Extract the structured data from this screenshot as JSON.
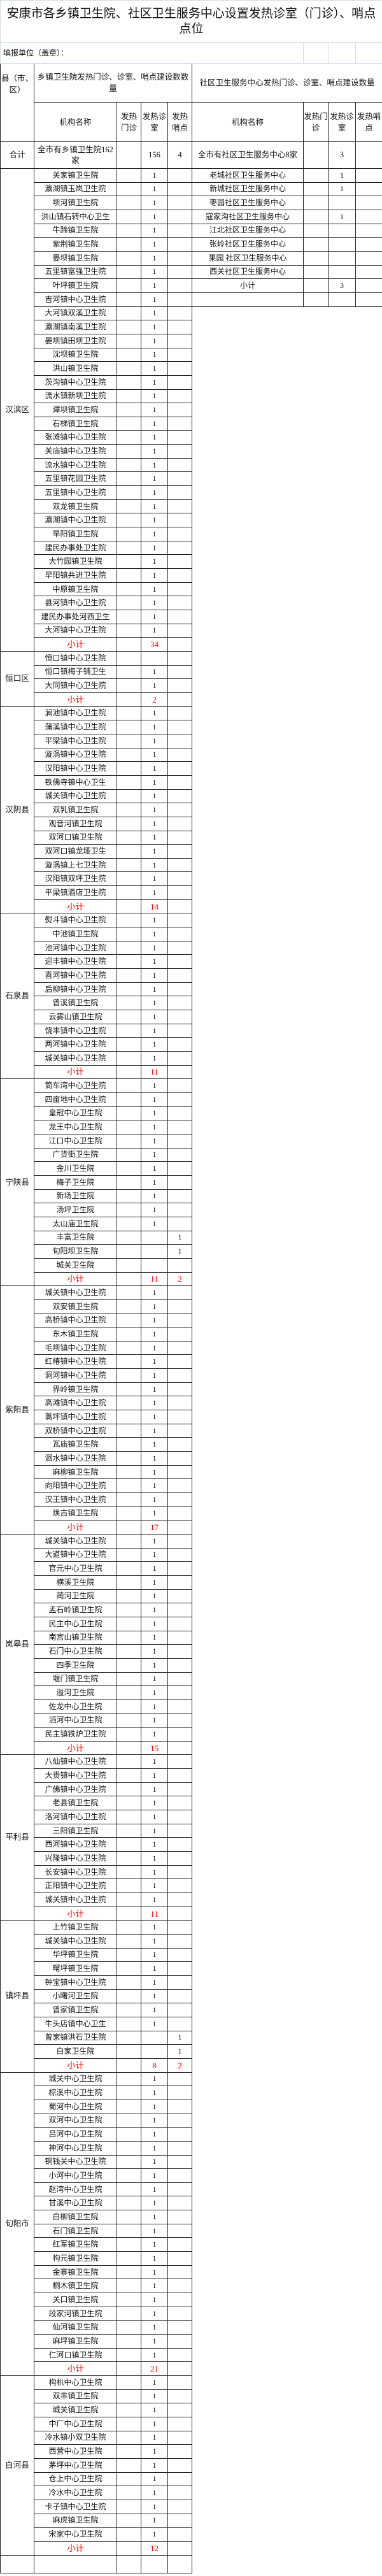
{
  "title": "安康市各乡镇卫生院、社区卫生服务中心设置发热诊室（门诊）、哨点点位",
  "fill_unit": "填报单位（盖章）：",
  "header": {
    "county": "县（市、区）",
    "township_group": "乡镇卫生院发热门诊、诊室、哨点建设数数量",
    "community_group": "社区卫生服务中心发热门诊、诊室、哨点建设数量",
    "name": "机构名称",
    "clinic": "发热门诊",
    "room": "发热诊室",
    "post": "发热哨点"
  },
  "total": {
    "label": "合计",
    "township_name": "全市有乡镇卫生院162家",
    "clinic": "",
    "room": "156",
    "post": "4",
    "community_name": "全市有社区卫生服务中心8家",
    "community_clinic": "",
    "community_room": "3",
    "community_post": ""
  },
  "community": [
    {
      "name": "老城社区卫生服务中心",
      "room": "1"
    },
    {
      "name": "新城社区卫生服务中心",
      "room": "1"
    },
    {
      "name": "枣园社区卫生服务中心",
      "room": ""
    },
    {
      "name": "寇家沟社区卫生服务中心",
      "room": "1"
    },
    {
      "name": "江北社区卫生服务中心",
      "room": ""
    },
    {
      "name": "张岭社区卫生服务中心",
      "room": ""
    },
    {
      "name": "果园 社区卫生服务中心",
      "room": ""
    },
    {
      "name": "西关社区卫生服务中心",
      "room": ""
    },
    {
      "name": "小计",
      "room": "3"
    }
  ],
  "subtotal_label": "小计",
  "counties": [
    {
      "name": "汉滨区",
      "rows": [
        [
          "关家镇卫生院",
          "1",
          ""
        ],
        [
          "瀛湖镇玉岚卫生院",
          "1",
          ""
        ],
        [
          "坝河镇卫生院",
          "1",
          ""
        ],
        [
          "洪山镇石转中心卫生",
          "1",
          ""
        ],
        [
          "牛蹄镇卫生院",
          "1",
          ""
        ],
        [
          "紫荆镇卫生院",
          "1",
          ""
        ],
        [
          "晏坝镇卫生院",
          "1",
          ""
        ],
        [
          "五里镇富强卫生院",
          "1",
          ""
        ],
        [
          "叶坪镇卫生院",
          "1",
          ""
        ],
        [
          "吉河镇中心卫生院",
          "1",
          ""
        ],
        [
          "大河镇双溪卫生院",
          "1",
          ""
        ],
        [
          "瀛湖镇南溪卫生院",
          "1",
          ""
        ],
        [
          "晏坝镇田坝卫生院",
          "1",
          ""
        ],
        [
          "沈坝镇卫生院",
          "1",
          ""
        ],
        [
          "洪山镇卫生院",
          "1",
          ""
        ],
        [
          "茨沟镇中心卫生院",
          "1",
          ""
        ],
        [
          "流水镇新坝卫生院",
          "1",
          ""
        ],
        [
          "谭坝镇卫生院",
          "1",
          ""
        ],
        [
          "石梯镇卫生院",
          "1",
          ""
        ],
        [
          "张滩镇中心卫生院",
          "1",
          ""
        ],
        [
          "关庙镇中心卫生院",
          "1",
          ""
        ],
        [
          "流水镇中心卫生院",
          "1",
          ""
        ],
        [
          "五里镇花园卫生院",
          "1",
          ""
        ],
        [
          "五里镇中心卫生院",
          "1",
          ""
        ],
        [
          "双龙镇卫生院",
          "1",
          ""
        ],
        [
          "瀛湖镇中心卫生院",
          "1",
          ""
        ],
        [
          "早阳镇卫生院",
          "1",
          ""
        ],
        [
          "建民办事处卫生院",
          "1",
          ""
        ],
        [
          "大竹园镇卫生院",
          "1",
          ""
        ],
        [
          "早阳镇共进卫生院",
          "1",
          ""
        ],
        [
          "中原镇卫生院",
          "1",
          ""
        ],
        [
          "县河镇中心卫生院",
          "1",
          ""
        ],
        [
          "建民办事处河西卫生",
          "1",
          ""
        ],
        [
          "大河镇中心卫生院",
          "1",
          ""
        ]
      ],
      "subtotal": {
        "room": "34",
        "post": ""
      }
    },
    {
      "name": "恒口区",
      "rows": [
        [
          "恒口镇中心卫生院",
          "",
          ""
        ],
        [
          "恒口镇梅子铺卫生",
          "1",
          ""
        ],
        [
          "大同镇中心卫生院",
          "1",
          ""
        ]
      ],
      "subtotal": {
        "room": "2",
        "post": ""
      }
    },
    {
      "name": "汉阴县",
      "rows": [
        [
          "涧池镇中心卫生院",
          "1",
          ""
        ],
        [
          "蒲溪镇中心卫生院",
          "1",
          ""
        ],
        [
          "平梁镇中心卫生院",
          "1",
          ""
        ],
        [
          "漩涡镇中心卫生院",
          "1",
          ""
        ],
        [
          "汉阳镇中心卫生院",
          "1",
          ""
        ],
        [
          "铁佛寺镇中心卫生",
          "1",
          ""
        ],
        [
          "城关镇中心卫生院",
          "1",
          ""
        ],
        [
          "双乳镇卫生院",
          "1",
          ""
        ],
        [
          "观音河镇卫生院",
          "1",
          ""
        ],
        [
          "双河口镇卫生院",
          "1",
          ""
        ],
        [
          "双河口镇龙垭卫生",
          "1",
          ""
        ],
        [
          "漩涡镇上七卫生院",
          "1",
          ""
        ],
        [
          "汉阳镇双坪卫生院",
          "1",
          ""
        ],
        [
          "平梁镇酒店卫生院",
          "1",
          ""
        ]
      ],
      "subtotal": {
        "room": "14",
        "post": ""
      }
    },
    {
      "name": "石泉县",
      "rows": [
        [
          "熨斗镇中心卫生院",
          "1",
          ""
        ],
        [
          "中池镇卫生院",
          "1",
          ""
        ],
        [
          "池河镇中心卫生院",
          "1",
          ""
        ],
        [
          "迎丰镇中心卫生院",
          "1",
          ""
        ],
        [
          "喜河镇中心卫生院",
          "1",
          ""
        ],
        [
          "后柳镇中心卫生院",
          "1",
          ""
        ],
        [
          "曾溪镇卫生院",
          "1",
          ""
        ],
        [
          "云雾山镇卫生院",
          "1",
          ""
        ],
        [
          "饶丰镇中心卫生院",
          "1",
          ""
        ],
        [
          "两河镇中心卫生院",
          "1",
          ""
        ],
        [
          "城关镇中心卫生院",
          "1",
          ""
        ]
      ],
      "subtotal": {
        "room": "11",
        "post": ""
      }
    },
    {
      "name": "宁陕县",
      "rows": [
        [
          "筒车湾中心卫生院",
          "1",
          ""
        ],
        [
          "四亩地中心卫生院",
          "1",
          ""
        ],
        [
          "皇冠中心卫生院",
          "1",
          ""
        ],
        [
          "龙王中心卫生院",
          "1",
          ""
        ],
        [
          "江口中心卫生院",
          "1",
          ""
        ],
        [
          "广货街卫生院",
          "1",
          ""
        ],
        [
          "金川卫生院",
          "1",
          ""
        ],
        [
          "梅子卫生院",
          "1",
          ""
        ],
        [
          "新场卫生院",
          "1",
          ""
        ],
        [
          "汤坪卫生院",
          "1",
          ""
        ],
        [
          "太山庙卫生院",
          "1",
          ""
        ],
        [
          "丰富卫生院",
          "",
          "1"
        ],
        [
          "旬阳坝卫生院",
          "",
          "1"
        ],
        [
          "城关卫生院",
          "",
          ""
        ]
      ],
      "subtotal": {
        "room": "11",
        "post": "2"
      }
    },
    {
      "name": "紫阳县",
      "rows": [
        [
          "城关镇中心卫生院",
          "1",
          ""
        ],
        [
          "双安镇卫生院",
          "1",
          ""
        ],
        [
          "高桥镇中心卫生院",
          "1",
          ""
        ],
        [
          "东木镇卫生院",
          "1",
          ""
        ],
        [
          "毛坝镇中心卫生院",
          "1",
          ""
        ],
        [
          "红椿镇中心卫生院",
          "1",
          ""
        ],
        [
          "洞河镇中心卫生院",
          "1",
          ""
        ],
        [
          "界岭镇卫生院",
          "1",
          ""
        ],
        [
          "高滩镇中心卫生院",
          "1",
          ""
        ],
        [
          "蒿坪镇中心卫生院",
          "1",
          ""
        ],
        [
          "双桥镇中心卫生院",
          "1",
          ""
        ],
        [
          "瓦庙镇卫生院",
          "1",
          ""
        ],
        [
          "洄水镇中心卫生院",
          "1",
          ""
        ],
        [
          "麻柳镇卫生院",
          "1",
          ""
        ],
        [
          "向阳镇中心卫生院",
          "1",
          ""
        ],
        [
          "汉王镇中心卫生院",
          "1",
          ""
        ],
        [
          "焕古镇卫生院",
          "1",
          ""
        ]
      ],
      "subtotal": {
        "room": "17",
        "post": ""
      }
    },
    {
      "name": "岚皋县",
      "rows": [
        [
          "城关镇中心卫生院",
          "1",
          ""
        ],
        [
          "大道镇中心卫生院",
          "1",
          ""
        ],
        [
          "官元中心卫生院",
          "1",
          ""
        ],
        [
          "横溪卫生院",
          "1",
          ""
        ],
        [
          "蔺河卫生院",
          "1",
          ""
        ],
        [
          "孟石岭镇卫生院",
          "1",
          ""
        ],
        [
          "民主中心卫生院",
          "1",
          ""
        ],
        [
          "南宫山镇卫生院",
          "1",
          ""
        ],
        [
          "石门中心卫生院",
          "1",
          ""
        ],
        [
          "四季卫生院",
          "1",
          ""
        ],
        [
          "堰门镇卫生院",
          "1",
          ""
        ],
        [
          "溢河卫生院",
          "1",
          ""
        ],
        [
          "佐龙中心卫生院",
          "1",
          ""
        ],
        [
          "滔河中心卫生院",
          "1",
          ""
        ],
        [
          "民主镇铁炉卫生院",
          "1",
          ""
        ]
      ],
      "subtotal": {
        "room": "15",
        "post": ""
      }
    },
    {
      "name": "平利县",
      "rows": [
        [
          "八仙镇中心卫生院",
          "1",
          ""
        ],
        [
          "大贵镇中心卫生院",
          "1",
          ""
        ],
        [
          "广佛镇中心卫生院",
          "1",
          ""
        ],
        [
          "老县镇卫生院",
          "1",
          ""
        ],
        [
          "洛河镇中心卫生院",
          "1",
          ""
        ],
        [
          "三阳镇卫生院",
          "1",
          ""
        ],
        [
          "西河镇中心卫生院",
          "1",
          ""
        ],
        [
          "兴隆镇中心卫生院",
          "1",
          ""
        ],
        [
          "长安镇中心卫生院",
          "1",
          ""
        ],
        [
          "正阳镇中心卫生院",
          "1",
          ""
        ],
        [
          "城关镇中心卫生院",
          "1",
          ""
        ]
      ],
      "subtotal": {
        "room": "11",
        "post": ""
      }
    },
    {
      "name": "镇坪县",
      "rows": [
        [
          "上竹镇卫生院",
          "1",
          ""
        ],
        [
          "城关镇中心卫生院",
          "1",
          ""
        ],
        [
          "华坪镇卫生院",
          "1",
          ""
        ],
        [
          "曙坪镇卫生院",
          "1",
          ""
        ],
        [
          "钟宝镇中心卫生院",
          "1",
          ""
        ],
        [
          "小曙河卫生院",
          "1",
          ""
        ],
        [
          "曾家镇卫生院",
          "1",
          ""
        ],
        [
          "牛头店镇中心卫生",
          "1",
          ""
        ],
        [
          "曾家镇洪石卫生院",
          "",
          "1"
        ],
        [
          "白家卫生院",
          "",
          "1"
        ]
      ],
      "subtotal": {
        "room": "8",
        "post": "2"
      }
    },
    {
      "name": "旬阳市",
      "rows": [
        [
          "城关中心卫生院",
          "1",
          ""
        ],
        [
          "棕溪中心卫生院",
          "1",
          ""
        ],
        [
          "蜀河中心卫生院",
          "1",
          ""
        ],
        [
          "双河中心卫生院",
          "1",
          ""
        ],
        [
          "吕河中心卫生院",
          "1",
          ""
        ],
        [
          "神河中心卫生院",
          "1",
          ""
        ],
        [
          "铜钱关中心卫生院",
          "1",
          ""
        ],
        [
          "小河中心卫生院",
          "1",
          ""
        ],
        [
          "赵湾中心卫生院",
          "1",
          ""
        ],
        [
          "甘溪中心卫生院",
          "1",
          ""
        ],
        [
          "白柳镇卫生院",
          "1",
          ""
        ],
        [
          "石门镇卫生院",
          "1",
          ""
        ],
        [
          "红军镇卫生院",
          "1",
          ""
        ],
        [
          "构元镇卫生院",
          "1",
          ""
        ],
        [
          "金寨镇卫生院",
          "1",
          ""
        ],
        [
          "桐木镇卫生院",
          "1",
          ""
        ],
        [
          "关口镇卫生院",
          "1",
          ""
        ],
        [
          "段家河镇卫生院",
          "1",
          ""
        ],
        [
          "仙河镇卫生院",
          "1",
          ""
        ],
        [
          "麻坪镇卫生院",
          "1",
          ""
        ],
        [
          "仁河口镇卫生院",
          "1",
          ""
        ]
      ],
      "subtotal": {
        "room": "21",
        "post": ""
      }
    },
    {
      "name": "白河县",
      "rows": [
        [
          "构朳中心卫生院",
          "1",
          ""
        ],
        [
          "双丰镇卫生院",
          "1",
          ""
        ],
        [
          "城关镇卫生院",
          "1",
          ""
        ],
        [
          "中厂中心卫生院",
          "1",
          ""
        ],
        [
          "冷水镇小双卫生院",
          "1",
          ""
        ],
        [
          "西营中心卫生院",
          "1",
          ""
        ],
        [
          "茅坪中心卫生院",
          "1",
          ""
        ],
        [
          "仓上中心卫生院",
          "1",
          ""
        ],
        [
          "冷水中心卫生院",
          "1",
          ""
        ],
        [
          "卡子镇中心卫生院",
          "1",
          ""
        ],
        [
          "麻虎镇卫生院",
          "1",
          ""
        ],
        [
          "宋家中心卫生院",
          "1",
          ""
        ]
      ],
      "subtotal": {
        "room": "12",
        "post": ""
      }
    }
  ],
  "colors": {
    "subtotal": "#ff0000",
    "border": "#222222",
    "gridline": "#d4dcea"
  }
}
